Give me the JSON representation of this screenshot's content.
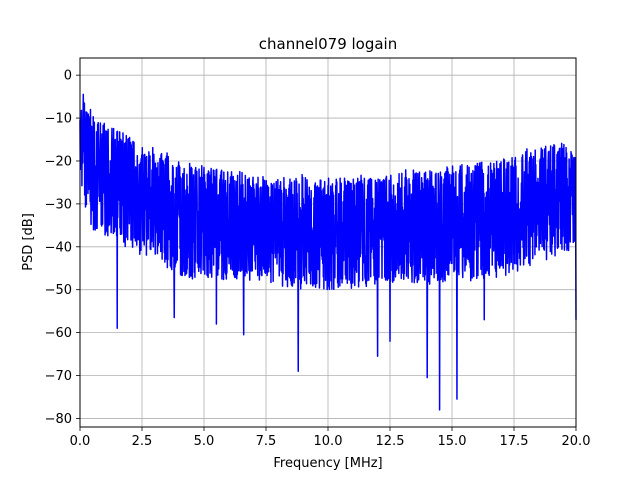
{
  "chart_data": {
    "type": "line",
    "title": "channel079 logain",
    "xlabel": "Frequency [MHz]",
    "ylabel": "PSD [dB]",
    "xlim": [
      0,
      20
    ],
    "ylim": [
      -82,
      4
    ],
    "xticks": [
      0,
      2.5,
      5,
      7.5,
      10,
      12.5,
      15,
      17.5,
      20
    ],
    "xtick_labels": [
      "0.0",
      "2.5",
      "5.0",
      "7.5",
      "10.0",
      "12.5",
      "15.0",
      "17.5",
      "20.0"
    ],
    "yticks": [
      0,
      -10,
      -20,
      -30,
      -40,
      -50,
      -60,
      -70,
      -80
    ],
    "ytick_labels": [
      "0",
      "−10",
      "−20",
      "−30",
      "−40",
      "−50",
      "−60",
      "−70",
      "−80"
    ],
    "grid": true,
    "series": [
      {
        "color": "#0000ff",
        "envelope_x": [
          0,
          0.25,
          0.5,
          1,
          1.5,
          2,
          2.5,
          3,
          3.5,
          4,
          5,
          6,
          7,
          8,
          9,
          10,
          11,
          12,
          13,
          14,
          15,
          16,
          17,
          17.5,
          18,
          18.5,
          19,
          19.5,
          20
        ],
        "envelope_upper": [
          -2,
          -6,
          -8,
          -11,
          -13,
          -14,
          -16,
          -17,
          -18,
          -20,
          -21,
          -22,
          -23,
          -24,
          -23,
          -24,
          -23,
          -24,
          -22,
          -22,
          -21,
          -20,
          -19,
          -19,
          -17,
          -17,
          -16,
          -15,
          -18
        ],
        "envelope_lower": [
          -23,
          -33,
          -36,
          -38,
          -39,
          -41,
          -42,
          -43,
          -45,
          -47,
          -48,
          -48,
          -48,
          -49,
          -50,
          -50,
          -50,
          -49,
          -48,
          -49,
          -48,
          -48,
          -47,
          -46,
          -45,
          -44,
          -43,
          -42,
          -40
        ],
        "dips": [
          [
            1.5,
            -59
          ],
          [
            3.8,
            -56.5
          ],
          [
            5.5,
            -58
          ],
          [
            6.6,
            -60.5
          ],
          [
            8.8,
            -69
          ],
          [
            12.0,
            -65.5
          ],
          [
            12.5,
            -62
          ],
          [
            14.0,
            -70.5
          ],
          [
            14.5,
            -78
          ],
          [
            15.2,
            -75.5
          ],
          [
            16.3,
            -57
          ],
          [
            20.0,
            -57
          ]
        ]
      }
    ]
  }
}
